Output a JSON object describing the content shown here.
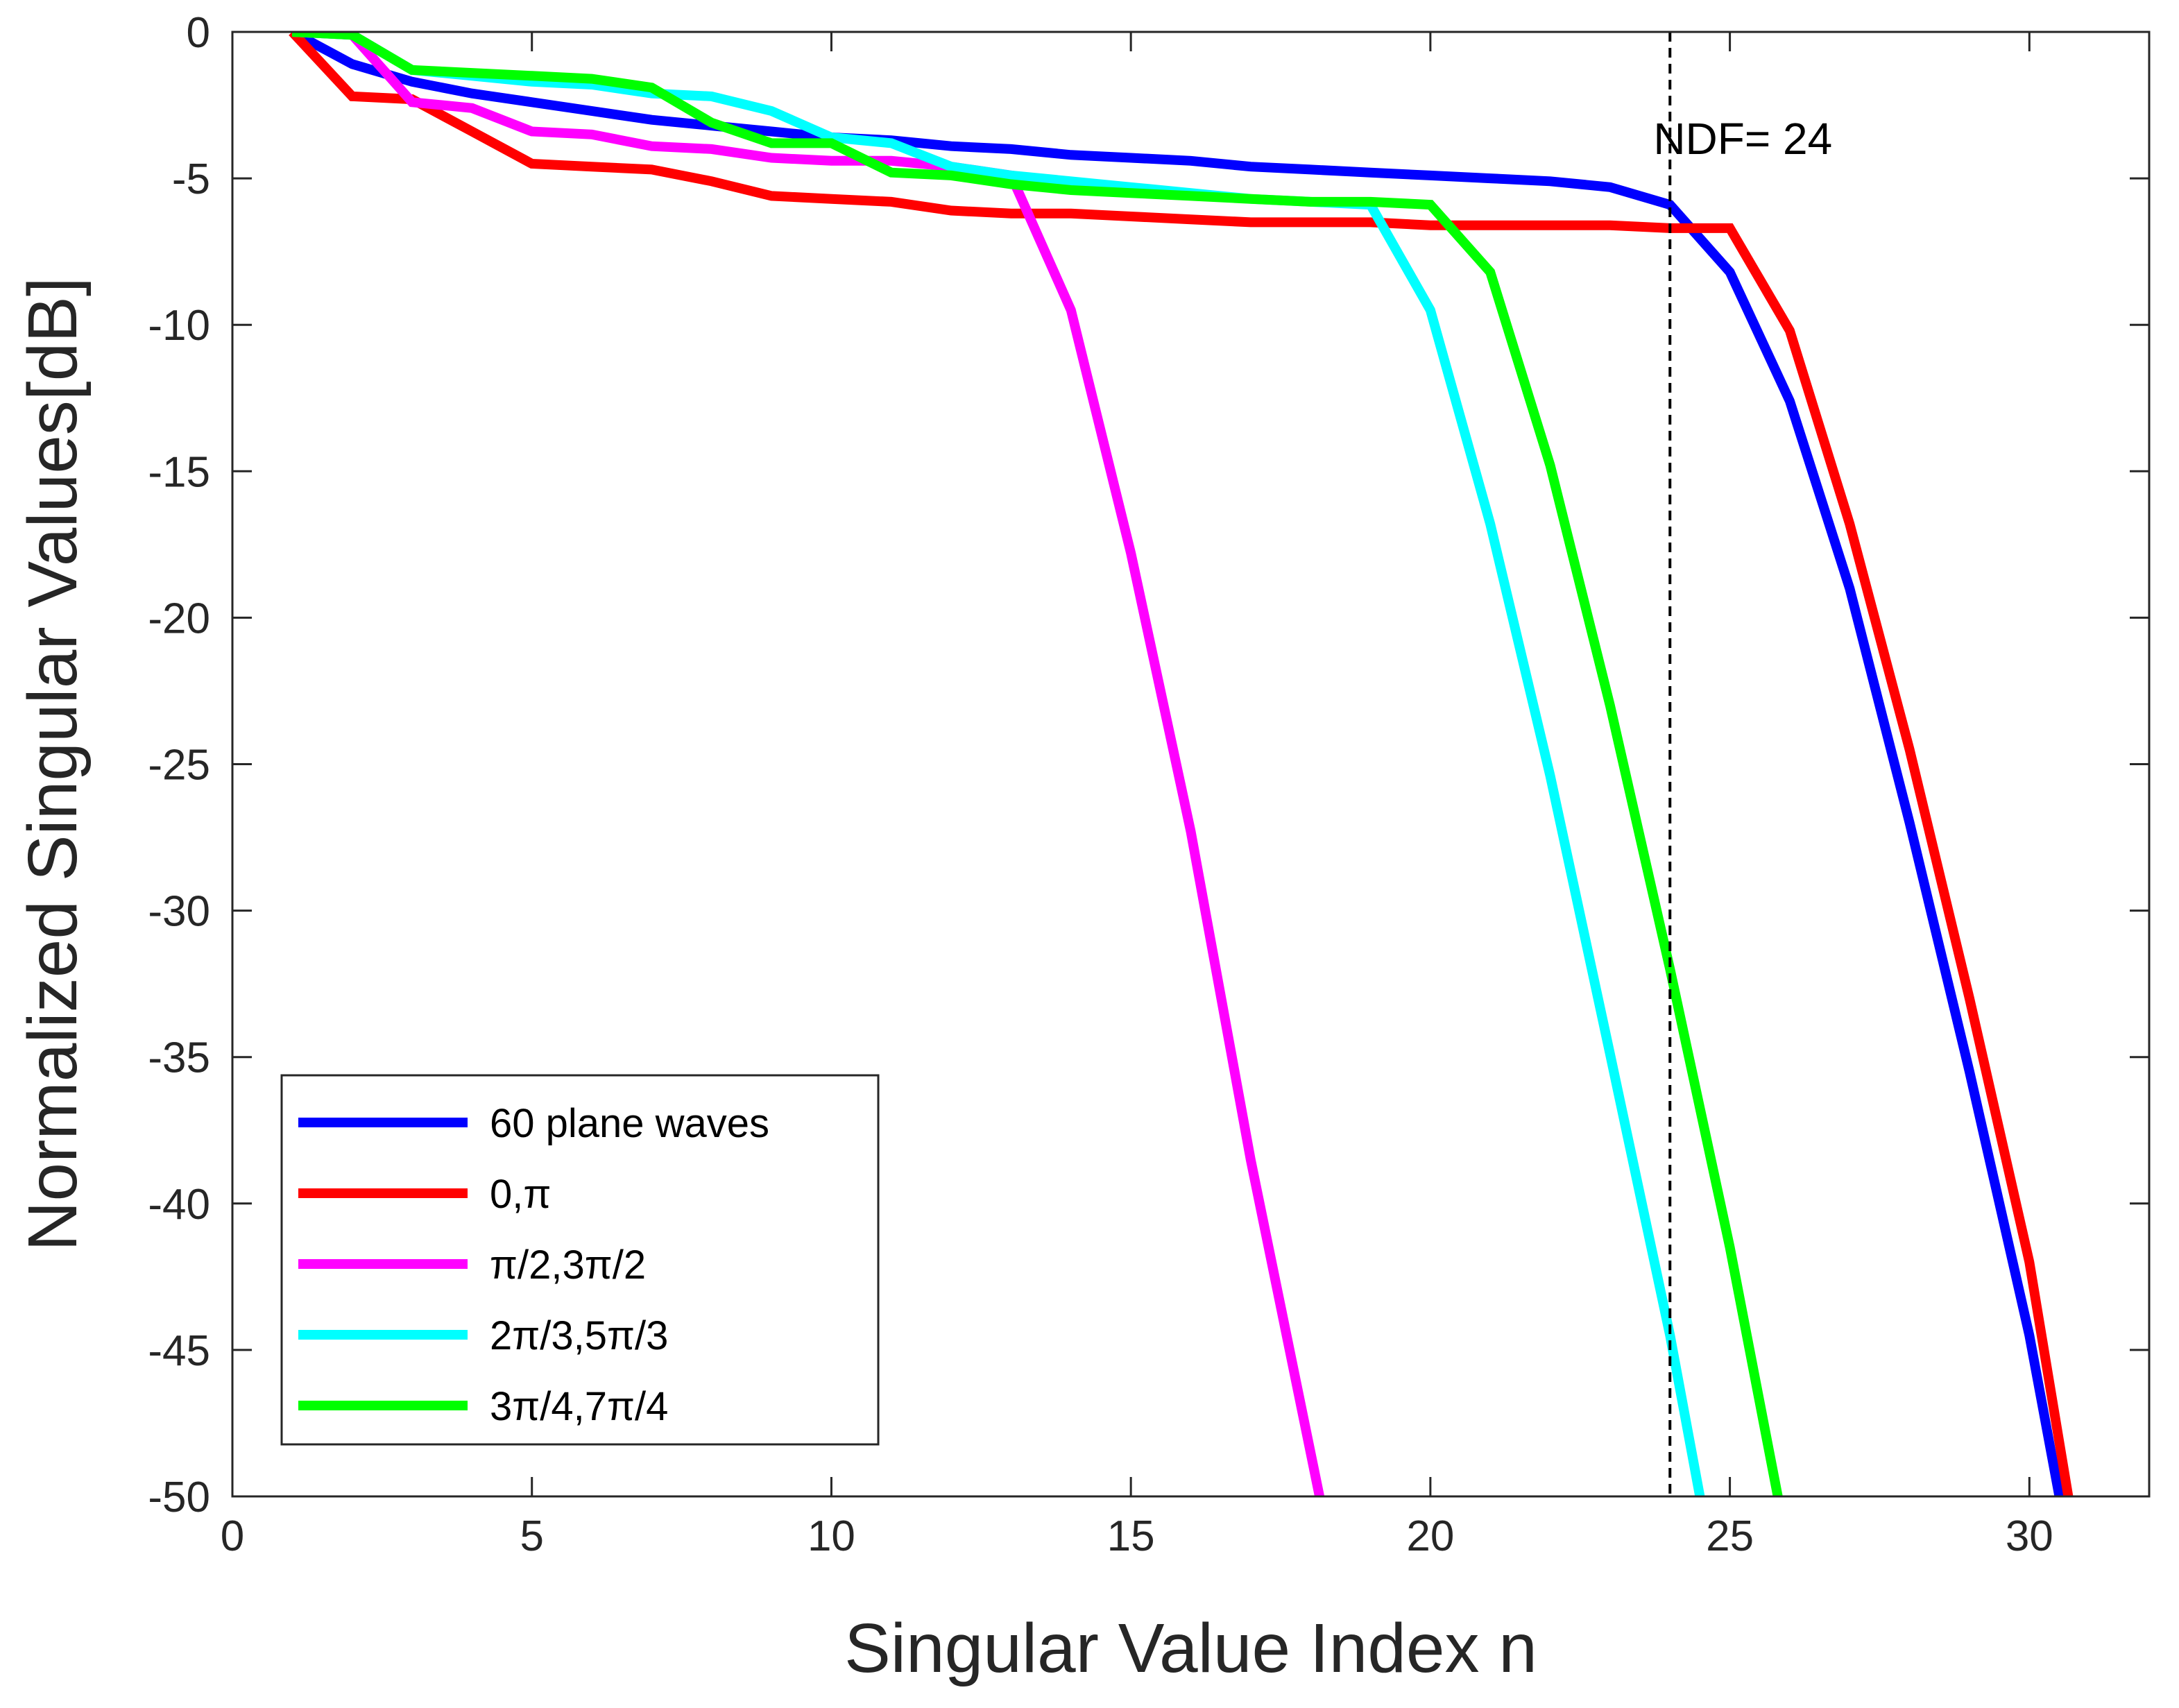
{
  "chart_data": {
    "type": "line",
    "title": "",
    "xlabel": "Singular Value Index n",
    "ylabel": "Normalized Singular Values[dB]",
    "xlim": [
      0,
      32
    ],
    "ylim": [
      -50,
      0
    ],
    "xticks": [
      0,
      5,
      10,
      15,
      20,
      25,
      30
    ],
    "yticks": [
      0,
      -5,
      -10,
      -15,
      -20,
      -25,
      -30,
      -35,
      -40,
      -45,
      -50
    ],
    "grid": false,
    "legend_position": "bottom-left",
    "annotation": {
      "text": "NDF= 24",
      "vline_x": 24
    },
    "series": [
      {
        "name": "60 plane waves",
        "color": "#0000ff",
        "x": [
          1,
          2,
          3,
          4,
          5,
          6,
          7,
          8,
          9,
          10,
          11,
          12,
          13,
          14,
          15,
          16,
          17,
          18,
          19,
          20,
          21,
          22,
          23,
          24,
          25,
          26,
          27,
          28,
          29,
          30,
          30.5
        ],
        "y": [
          0,
          -1.1,
          -1.7,
          -2.1,
          -2.4,
          -2.7,
          -3.0,
          -3.2,
          -3.4,
          -3.6,
          -3.7,
          -3.9,
          -4.0,
          -4.2,
          -4.3,
          -4.4,
          -4.6,
          -4.7,
          -4.8,
          -4.9,
          -5.0,
          -5.1,
          -5.3,
          -5.9,
          -8.2,
          -12.6,
          -19.0,
          -27.0,
          -35.5,
          -44.5,
          -50.0
        ]
      },
      {
        "name": "0,π",
        "color": "#ff0000",
        "x": [
          1,
          2,
          3,
          4,
          5,
          6,
          7,
          8,
          9,
          10,
          11,
          12,
          13,
          14,
          15,
          16,
          17,
          18,
          19,
          20,
          21,
          22,
          23,
          24,
          25,
          26,
          27,
          28,
          29,
          30,
          30.65
        ],
        "y": [
          0,
          -2.2,
          -2.3,
          -3.4,
          -4.5,
          -4.6,
          -4.7,
          -5.1,
          -5.6,
          -5.7,
          -5.8,
          -6.1,
          -6.2,
          -6.2,
          -6.3,
          -6.4,
          -6.5,
          -6.5,
          -6.5,
          -6.6,
          -6.6,
          -6.6,
          -6.6,
          -6.7,
          -6.7,
          -10.2,
          -16.8,
          -24.5,
          -33.0,
          -42.0,
          -50.0
        ]
      },
      {
        "name": "π/2,3π/2",
        "color": "#ff00ff",
        "x": [
          1,
          2,
          3,
          4,
          5,
          6,
          7,
          8,
          9,
          10,
          11,
          12,
          13,
          14,
          15,
          16,
          17,
          18.15
        ],
        "y": [
          0,
          -0.1,
          -2.4,
          -2.6,
          -3.4,
          -3.5,
          -3.9,
          -4.0,
          -4.3,
          -4.4,
          -4.4,
          -4.6,
          -4.9,
          -9.5,
          -17.8,
          -27.3,
          -38.5,
          -50.0
        ]
      },
      {
        "name": "2π/3,5π/3",
        "color": "#00ffff",
        "x": [
          1,
          2,
          3,
          4,
          5,
          6,
          7,
          8,
          9,
          10,
          11,
          12,
          13,
          14,
          15,
          16,
          17,
          18,
          19,
          20,
          21,
          22,
          23,
          24,
          24.5
        ],
        "y": [
          0,
          -0.1,
          -1.3,
          -1.5,
          -1.7,
          -1.8,
          -2.1,
          -2.2,
          -2.7,
          -3.6,
          -3.8,
          -4.6,
          -4.9,
          -5.1,
          -5.3,
          -5.5,
          -5.7,
          -5.8,
          -5.9,
          -9.5,
          -16.8,
          -25.4,
          -34.9,
          -44.5,
          -50.0
        ]
      },
      {
        "name": "3π/4,7π/4",
        "color": "#00ff00",
        "x": [
          1,
          2,
          3,
          4,
          5,
          6,
          7,
          8,
          9,
          10,
          11,
          12,
          13,
          14,
          15,
          16,
          17,
          18,
          19,
          20,
          21,
          22,
          23,
          24,
          25,
          25.8
        ],
        "y": [
          0,
          -0.1,
          -1.3,
          -1.4,
          -1.5,
          -1.6,
          -1.9,
          -3.1,
          -3.8,
          -3.8,
          -4.8,
          -4.9,
          -5.2,
          -5.4,
          -5.5,
          -5.6,
          -5.7,
          -5.8,
          -5.8,
          -5.9,
          -8.2,
          -14.8,
          -23.0,
          -32.0,
          -41.5,
          -50.0
        ]
      }
    ]
  }
}
